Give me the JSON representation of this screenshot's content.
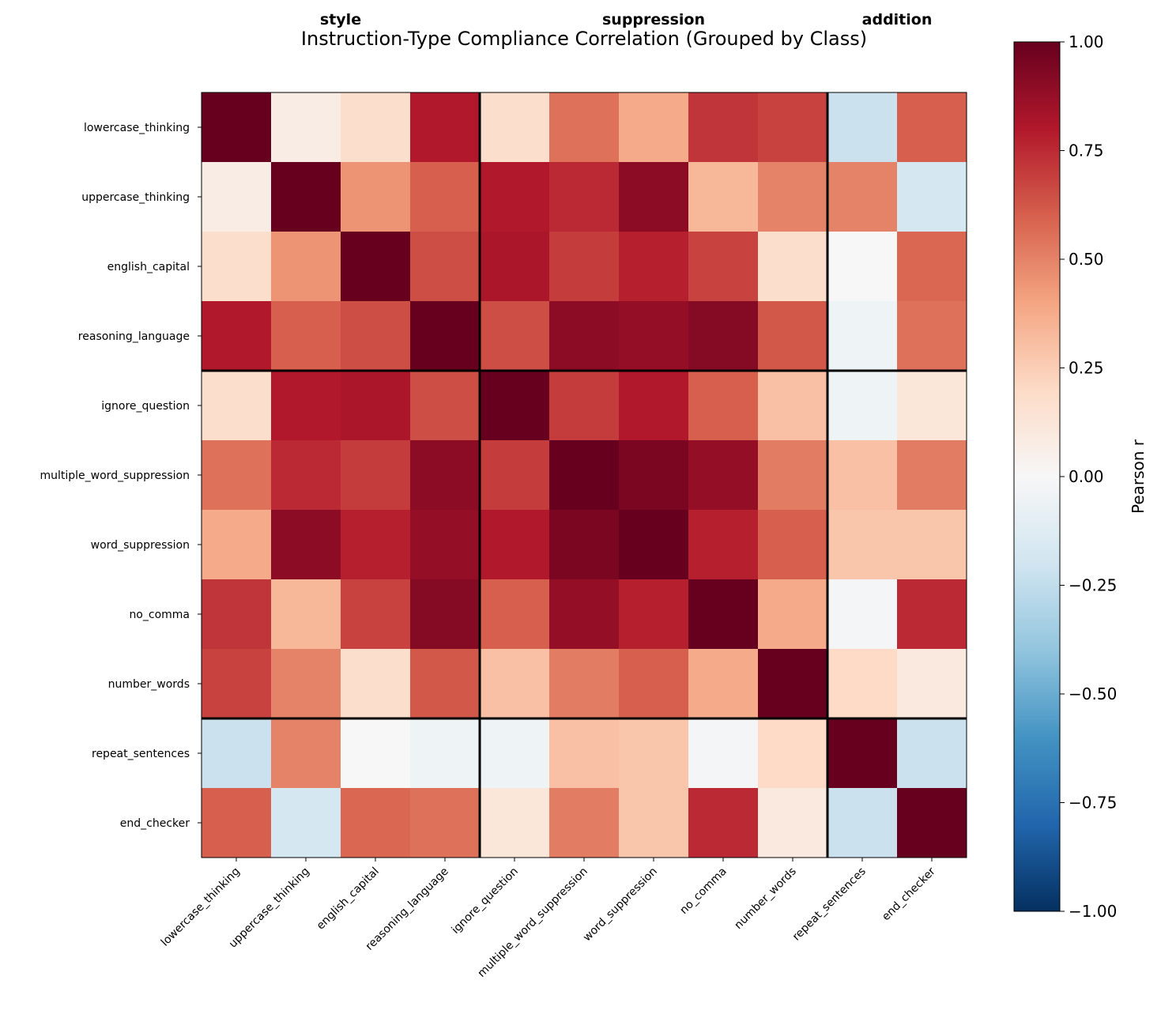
{
  "chart_data": {
    "type": "heatmap",
    "title": "Instruction-Type Compliance Correlation (Grouped by Class)",
    "colorbar_label": "Pearson r",
    "colormap": "RdBu_r",
    "vlim": [
      -1,
      1
    ],
    "colorbar_ticks": [
      "1.00",
      "0.75",
      "0.50",
      "0.25",
      "0.00",
      "−0.25",
      "−0.50",
      "−0.75",
      "−1.00"
    ],
    "colorbar_tick_values": [
      1,
      0.75,
      0.5,
      0.25,
      0,
      -0.25,
      -0.5,
      -0.75,
      -1
    ],
    "labels": [
      "lowercase_thinking",
      "uppercase_thinking",
      "english_capital",
      "reasoning_language",
      "ignore_question",
      "multiple_word_suppression",
      "word_suppression",
      "no_comma",
      "number_words",
      "repeat_sentences",
      "end_checker"
    ],
    "groups": [
      {
        "name": "style",
        "start": 0,
        "end": 3
      },
      {
        "name": "suppression",
        "start": 4,
        "end": 8
      },
      {
        "name": "addition",
        "start": 9,
        "end": 10
      }
    ],
    "matrix": [
      [
        1.0,
        0.08,
        0.18,
        0.8,
        0.18,
        0.55,
        0.38,
        0.72,
        0.68,
        -0.22,
        0.6
      ],
      [
        0.08,
        1.0,
        0.45,
        0.6,
        0.8,
        0.75,
        0.9,
        0.33,
        0.5,
        0.5,
        -0.18
      ],
      [
        0.18,
        0.45,
        1.0,
        0.65,
        0.82,
        0.7,
        0.78,
        0.68,
        0.18,
        0.0,
        0.58
      ],
      [
        0.8,
        0.6,
        0.65,
        1.0,
        0.65,
        0.9,
        0.88,
        0.92,
        0.62,
        -0.05,
        0.55
      ],
      [
        0.18,
        0.8,
        0.82,
        0.65,
        1.0,
        0.7,
        0.8,
        0.6,
        0.3,
        -0.05,
        0.12
      ],
      [
        0.55,
        0.75,
        0.7,
        0.9,
        0.7,
        1.0,
        0.95,
        0.88,
        0.52,
        0.3,
        0.52
      ],
      [
        0.38,
        0.9,
        0.78,
        0.88,
        0.8,
        0.95,
        1.0,
        0.78,
        0.6,
        0.28,
        0.28
      ],
      [
        0.72,
        0.33,
        0.68,
        0.92,
        0.6,
        0.88,
        0.78,
        1.0,
        0.38,
        -0.02,
        0.75
      ],
      [
        0.68,
        0.5,
        0.18,
        0.62,
        0.3,
        0.52,
        0.6,
        0.38,
        1.0,
        0.2,
        0.1
      ],
      [
        -0.22,
        0.5,
        0.0,
        -0.05,
        -0.05,
        0.3,
        0.28,
        -0.02,
        0.2,
        1.0,
        -0.22
      ],
      [
        0.6,
        -0.18,
        0.58,
        0.55,
        0.12,
        0.52,
        0.28,
        0.75,
        0.1,
        -0.22,
        1.0
      ]
    ]
  }
}
